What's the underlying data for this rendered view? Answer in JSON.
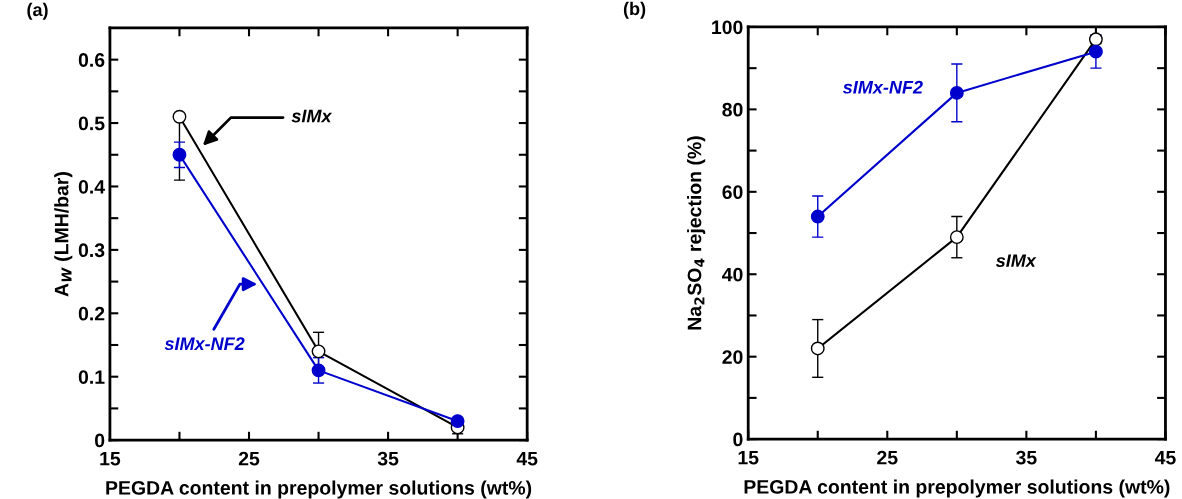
{
  "chart_data": [
    {
      "type": "line",
      "title": "(a)",
      "xlabel": "PEGDA content in prepolymer solutions (wt%)",
      "ylabel": "A$_{W}$ (LMH/bar)",
      "x": [
        20,
        30,
        40
      ],
      "series": [
        {
          "name": "sIMx",
          "color": "#000000",
          "values": [
            0.51,
            0.14,
            0.02
          ],
          "errors": [
            [
              0.41,
              0.51
            ],
            0.03,
            0.01
          ]
        },
        {
          "name": "sIMx-NF2",
          "color": "#0000cc",
          "values": [
            0.45,
            0.11,
            0.03
          ],
          "errors": [
            0.02,
            0.02,
            null
          ]
        }
      ],
      "xlim": [
        15,
        45
      ],
      "xticks": [
        15,
        {
          "value": 20,
          "label": null
        },
        25,
        {
          "value": 30,
          "label": null
        },
        35,
        {
          "value": 40,
          "label": null
        },
        45
      ],
      "ylim": [
        0,
        0.65
      ],
      "yticks": [
        0,
        {
          "value": 0.05,
          "label": null
        },
        0.1,
        {
          "value": 0.15,
          "label": null
        },
        0.2,
        {
          "value": 0.25,
          "label": null
        },
        0.3,
        {
          "value": 0.35,
          "label": null
        },
        0.4,
        {
          "value": 0.45,
          "label": null
        },
        0.5,
        {
          "value": 0.55,
          "label": null
        },
        0.6
      ],
      "marker": "circle",
      "line_style": "solid",
      "grid": false,
      "legend": false
    },
    {
      "type": "line",
      "title": "(b)",
      "xlabel": "PEGDA content in prepolymer solutions (wt%)",
      "ylabel": "Na$_{2}$SO$_{4}$ rejection (%)",
      "x": [
        20,
        30,
        40
      ],
      "series": [
        {
          "name": "sIMx",
          "color": "#000000",
          "values": [
            22,
            49,
            97
          ],
          "errors": [
            7,
            5,
            1
          ]
        },
        {
          "name": "sIMx-NF2",
          "color": "#0000cc",
          "values": [
            54,
            84,
            94
          ],
          "errors": [
            5,
            7,
            4
          ]
        }
      ],
      "xlim": [
        15,
        45
      ],
      "xticks": [
        15,
        {
          "value": 20,
          "label": null
        },
        25,
        {
          "value": 30,
          "label": null
        },
        35,
        {
          "value": 40,
          "label": null
        },
        45
      ],
      "ylim": [
        0,
        100
      ],
      "yticks": [
        0,
        {
          "value": 10,
          "label": null
        },
        20,
        {
          "value": 30,
          "label": null
        },
        40,
        {
          "value": 50,
          "label": null
        },
        60,
        {
          "value": 70,
          "label": null
        },
        80,
        {
          "value": 90,
          "label": null
        },
        100
      ],
      "marker": "circle",
      "line_style": "solid",
      "grid": false,
      "legend": false
    }
  ]
}
